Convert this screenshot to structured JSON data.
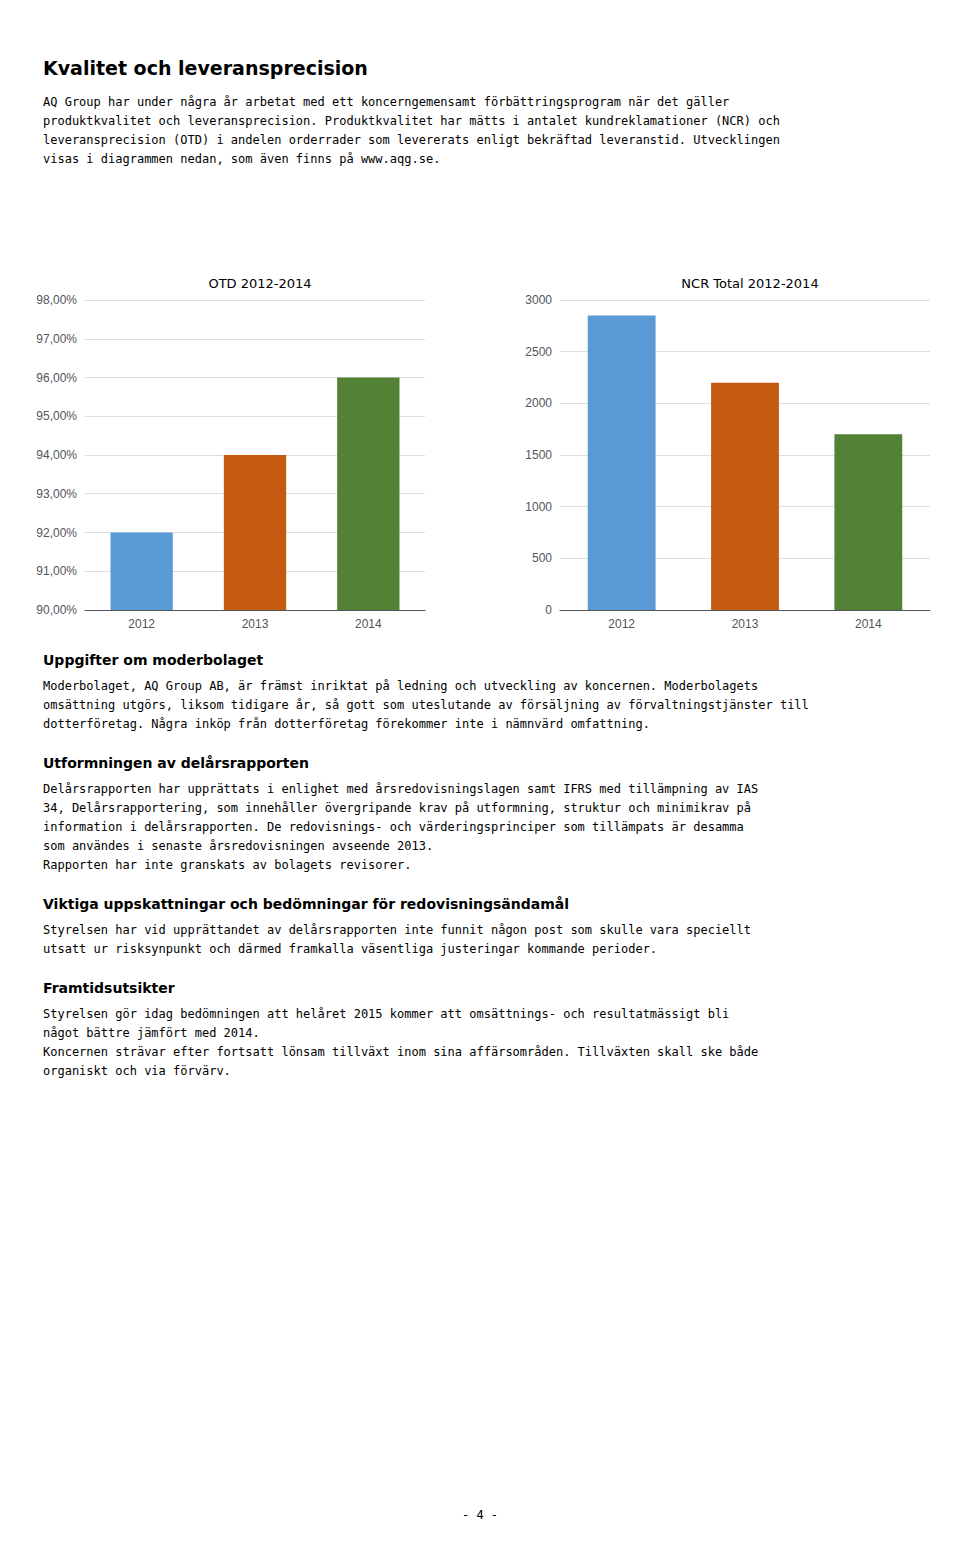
{
  "title": "Kvalitet och leveransprecision",
  "subtitle": "AQ Group har under några år arbetat med ett koncerngemensamt förbättringsprogram när det gäller\nproduktkvalitet och leveransprecision. Produktkvalitet har mätts i antalet kundreklamationer (NCR) och\nleveransprecision (OTD) i andelen orderrader som levererats enligt bekräftad leveranstid. Utvecklingen\nvisas i diagrammen nedan, som även finns på www.aqg.se.",
  "chart_data": [
    {
      "type": "bar",
      "title": "OTD 2012-2014",
      "categories": [
        "2012",
        "2013",
        "2014"
      ],
      "values": [
        0.92,
        0.94,
        0.96
      ],
      "colors": [
        "#5B9BD5",
        "#C55A11",
        "#538135"
      ],
      "ylim": [
        0.9,
        0.98
      ],
      "yticks": [
        {
          "value": 0.9,
          "label": "90,00%"
        },
        {
          "value": 0.91,
          "label": "91,00%"
        },
        {
          "value": 0.92,
          "label": "92,00%"
        },
        {
          "value": 0.93,
          "label": "93,00%"
        },
        {
          "value": 0.94,
          "label": "94,00%"
        },
        {
          "value": 0.95,
          "label": "95,00%"
        },
        {
          "value": 0.96,
          "label": "96,00%"
        },
        {
          "value": 0.97,
          "label": "97,00%"
        },
        {
          "value": 0.98,
          "label": "98,00%"
        }
      ],
      "grid": true
    },
    {
      "type": "bar",
      "title": "NCR Total 2012-2014",
      "categories": [
        "2012",
        "2013",
        "2014"
      ],
      "values": [
        2850,
        2200,
        1700
      ],
      "colors": [
        "#5B9BD5",
        "#C55A11",
        "#538135"
      ],
      "ylim": [
        0,
        3000
      ],
      "yticks": [
        0,
        500,
        1000,
        1500,
        2000,
        2500,
        3000
      ],
      "grid": true
    }
  ],
  "annotations": [
    {
      "title": "Uppgifter om moderbolaget",
      "annotations": [
        "Moderbolaget, AQ Group AB, är främst inriktat på ledning och utveckling av koncernen. Moderbolagets\nomsättning utgörs, liksom tidigare år, så gott som uteslutande av försäljning av förvaltningstjänster till\ndotterföretag. Några inköp från dotterföretag förekommer inte i nämnvärd omfattning."
      ]
    },
    {
      "title": "Utformningen av delårsrapporten",
      "annotations": [
        "Delårsrapporten har upprättats i enlighet med årsredovisningslagen samt IFRS med tillämpning av IAS\n34, Delårsrapportering, som innehåller övergripande krav på utformning, struktur och minimikrav på\ninformation i delårsrapporten. De redovisnings- och värderingsprinciper som tillämpats är desamma\nsom användes i senaste årsredovisningen avseende 2013.",
        "Rapporten har inte granskats av bolagets revisorer."
      ]
    },
    {
      "title": "Viktiga uppskattningar och bedömningar för redovisningsändamål",
      "annotations": [
        "Styrelsen har vid upprättandet av delårsrapporten inte funnit någon post som skulle vara speciellt\nutsatt ur risksynpunkt och därmed framkalla väsentliga justeringar kommande perioder."
      ]
    },
    {
      "title": "Framtidsutsikter",
      "annotations": [
        "Styrelsen gör idag bedömningen att helåret 2015 kommer att omsättnings- och resultatmässigt bli\nnågot bättre jämfört med 2014.",
        "Koncernen strävar efter fortsatt lönsam tillväxt inom sina affärsområden. Tillväxten skall ske både\norganiskt och via förvärv."
      ]
    },
    {
      "annotations": [
        "- 4 -"
      ]
    }
  ]
}
